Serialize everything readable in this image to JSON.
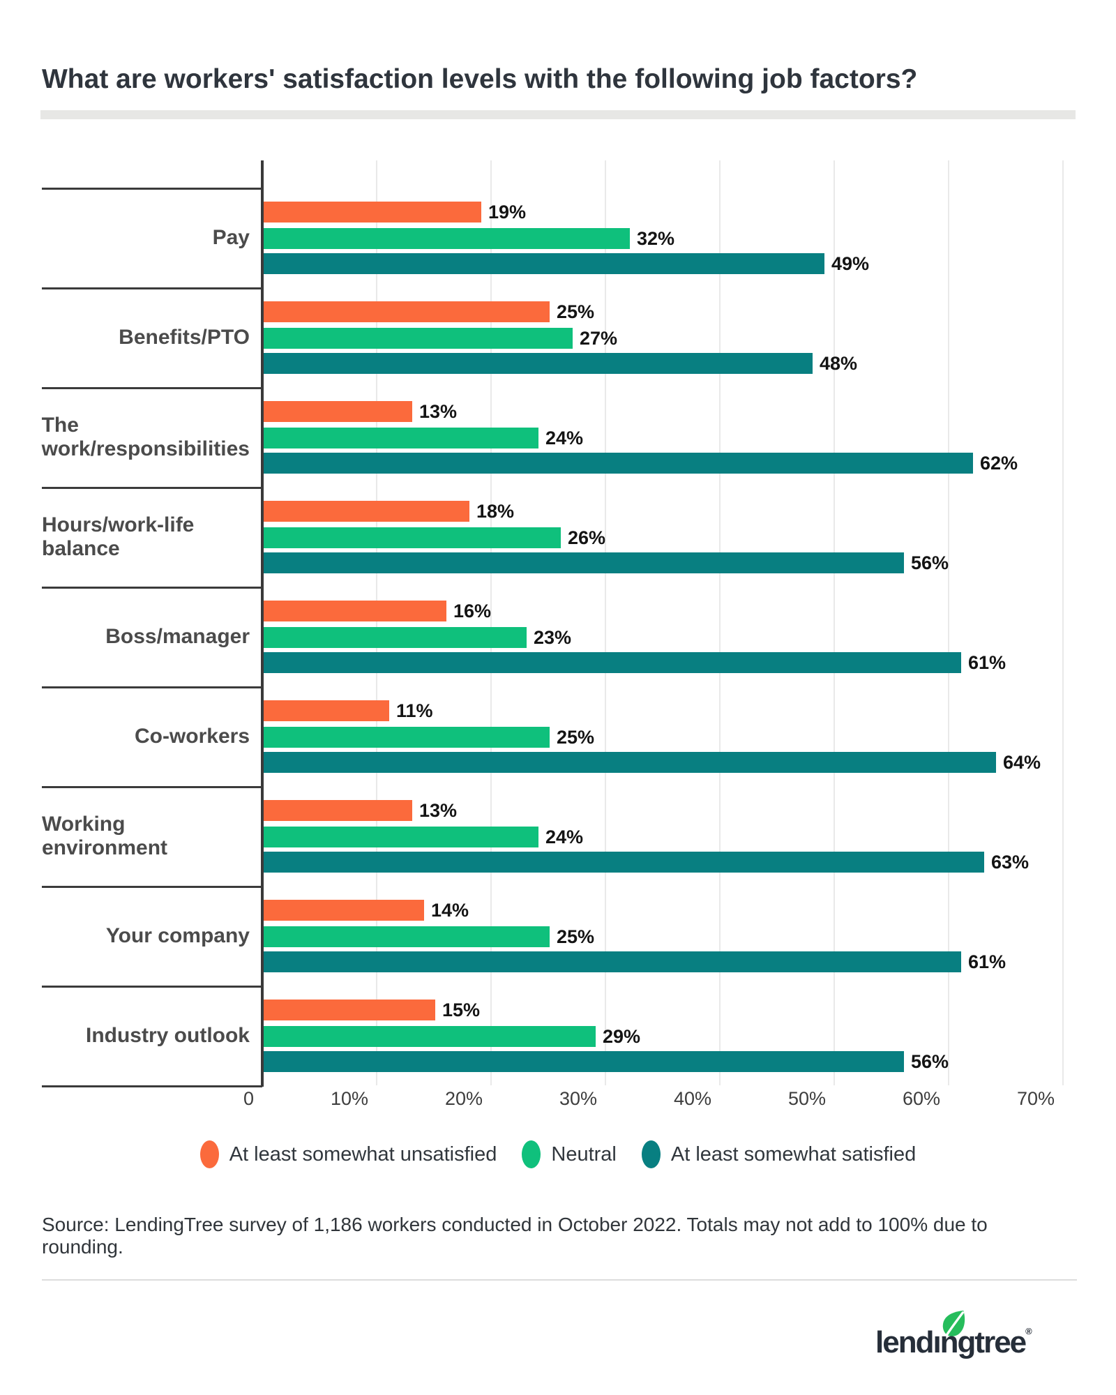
{
  "title": "What are workers' satisfaction levels with the following job factors?",
  "chart_data": {
    "type": "bar",
    "orientation": "horizontal",
    "title": "What are workers' satisfaction levels with the following job factors?",
    "categories": [
      "Pay",
      "Benefits/PTO",
      "The work/responsibilities",
      "Hours/work-life balance",
      "Boss/manager",
      "Co-workers",
      "Working environment",
      "Your company",
      "Industry outlook"
    ],
    "series": [
      {
        "name": "At least somewhat unsatisfied",
        "color": "#fb6a3c",
        "values": [
          19,
          25,
          13,
          18,
          16,
          11,
          13,
          14,
          15
        ]
      },
      {
        "name": "Neutral",
        "color": "#0fc07c",
        "values": [
          32,
          27,
          24,
          26,
          23,
          25,
          24,
          25,
          29
        ]
      },
      {
        "name": "At least somewhat satisfied",
        "color": "#087f81",
        "values": [
          49,
          48,
          62,
          56,
          61,
          64,
          63,
          61,
          56
        ]
      }
    ],
    "value_suffix": "%",
    "xlim": [
      0,
      70
    ],
    "x_ticks": [
      {
        "value": 0,
        "label": "0"
      },
      {
        "value": 10,
        "label": "10%"
      },
      {
        "value": 20,
        "label": "20%"
      },
      {
        "value": 30,
        "label": "30%"
      },
      {
        "value": 40,
        "label": "40%"
      },
      {
        "value": 50,
        "label": "50%"
      },
      {
        "value": 60,
        "label": "60%"
      },
      {
        "value": 70,
        "label": "70%"
      }
    ],
    "grid": true,
    "legend_position": "bottom"
  },
  "source": "Source: LendingTree survey of 1,186 workers conducted in October 2022. Totals may not add to 100% due to rounding.",
  "logo": {
    "wordmark": "lendıngtree",
    "registered": "®",
    "leaf_color": "#26bd5c",
    "text_color": "#262e39"
  }
}
